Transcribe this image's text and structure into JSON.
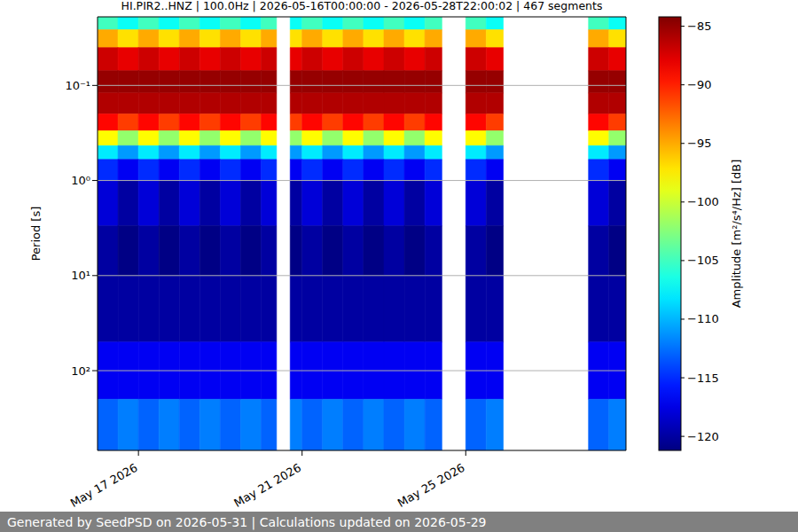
{
  "chart_data": {
    "type": "heatmap",
    "title": "HI.PIR2..HNZ | 100.0Hz | 2026-05-16T00:00:00 - 2026-05-28T22:00:02 | 467 segments",
    "y_label": "Period [s]",
    "x": [
      "2026-05-16T00:00:00",
      "2026-05-16T12:00:00",
      "2026-05-17T00:00:00",
      "2026-05-17T12:00:00",
      "2026-05-18T00:00:00",
      "2026-05-18T12:00:00",
      "2026-05-19T00:00:00",
      "2026-05-19T12:00:00",
      "2026-05-20T00:00:00",
      "2026-05-20T09:00:00",
      "2026-05-20T17:00:00",
      "2026-05-21T00:00:00",
      "2026-05-21T12:00:00",
      "2026-05-22T00:00:00",
      "2026-05-22T12:00:00",
      "2026-05-23T00:00:00",
      "2026-05-23T12:00:00",
      "2026-05-24T00:00:00",
      "2026-05-24T10:00:00",
      "2026-05-25T00:00:00",
      "2026-05-25T12:00:00",
      "2026-05-25T22:00:00",
      "2026-05-28T00:00:00",
      "2026-05-28T12:00:00",
      "2026-05-28T22:00:02"
    ],
    "periods": [
      0.019,
      0.026,
      0.04,
      0.07,
      0.12,
      0.2,
      0.3,
      0.43,
      0.6,
      1,
      3,
      10,
      50,
      200,
      690
    ],
    "xlim": [
      "2026-05-16T00:00:00",
      "2026-05-28T22:00:02"
    ],
    "ylim": [
      0.019,
      690
    ],
    "xticks": [
      {
        "value": "2026-05-17T00:00:00",
        "label": "May 17 2026"
      },
      {
        "value": "2026-05-21T00:00:00",
        "label": "May 21 2026"
      },
      {
        "value": "2026-05-25T00:00:00",
        "label": "May 25 2026"
      }
    ],
    "yticks": [
      {
        "value": 0.1,
        "label": "10⁻¹"
      },
      {
        "value": 1,
        "label": "10⁰"
      },
      {
        "value": 10,
        "label": "10¹"
      },
      {
        "value": 100,
        "label": "10²"
      }
    ],
    "log": "y",
    "grid": true,
    "cells": [
      [
        -105,
        -107,
        -105,
        -107,
        -105,
        -107,
        -105,
        -107,
        -105,
        null,
        -107,
        -105,
        -107,
        -105,
        -107,
        -105,
        -107,
        -105,
        null,
        -105,
        -107,
        null,
        -105,
        -107
      ],
      [
        -95,
        -97,
        -95,
        -97,
        -95,
        -97,
        -95,
        -97,
        -95,
        null,
        -97,
        -95,
        -97,
        -95,
        -97,
        -95,
        -97,
        -95,
        null,
        -95,
        -97,
        null,
        -95,
        -97
      ],
      [
        -87,
        -88,
        -87,
        -88,
        -87,
        -88,
        -87,
        -88,
        -87,
        null,
        -88,
        -87,
        -88,
        -87,
        -88,
        -87,
        -88,
        -87,
        null,
        -87,
        -88,
        null,
        -87,
        -88
      ],
      [
        -85,
        -85,
        -85,
        -85,
        -85,
        -85,
        -85,
        -85,
        -85,
        null,
        -85,
        -85,
        -85,
        -85,
        -85,
        -85,
        -85,
        -85,
        null,
        -85,
        -85,
        null,
        -85,
        -85
      ],
      [
        -86,
        -86,
        -86,
        -86,
        -86,
        -86,
        -86,
        -86,
        -86,
        null,
        -86,
        -86,
        -86,
        -86,
        -86,
        -86,
        -86,
        -86,
        null,
        -86,
        -86,
        null,
        -86,
        -86
      ],
      [
        -89,
        -91,
        -89,
        -91,
        -89,
        -91,
        -89,
        -91,
        -89,
        null,
        -91,
        -89,
        -91,
        -89,
        -91,
        -89,
        -91,
        -89,
        null,
        -89,
        -91,
        null,
        -89,
        -91
      ],
      [
        -98,
        -102,
        -98,
        -102,
        -98,
        -102,
        -98,
        -102,
        -98,
        null,
        -102,
        -98,
        -102,
        -98,
        -102,
        -98,
        -102,
        -98,
        null,
        -98,
        -102,
        null,
        -98,
        -102
      ],
      [
        -108,
        -111,
        -108,
        -111,
        -108,
        -111,
        -108,
        -111,
        -108,
        null,
        -111,
        -108,
        -111,
        -108,
        -111,
        -108,
        -111,
        -108,
        null,
        -108,
        -111,
        null,
        -108,
        -111
      ],
      [
        -115,
        -117,
        -115,
        -117,
        -115,
        -117,
        -115,
        -117,
        -115,
        null,
        -117,
        -115,
        -117,
        -115,
        -117,
        -115,
        -117,
        -115,
        null,
        -115,
        -117,
        null,
        -115,
        -117
      ],
      [
        -118,
        -120,
        -118,
        -120,
        -118,
        -120,
        -118,
        -120,
        -118,
        null,
        -120,
        -118,
        -120,
        -118,
        -120,
        -118,
        -120,
        -118,
        null,
        -118,
        -120,
        null,
        -118,
        -120
      ],
      [
        -120,
        -121,
        -120,
        -121,
        -120,
        -121,
        -120,
        -121,
        -120,
        null,
        -121,
        -120,
        -121,
        -120,
        -121,
        -120,
        -121,
        -120,
        null,
        -120,
        -121,
        null,
        -120,
        -121
      ],
      [
        -120,
        -120,
        -120,
        -120,
        -120,
        -120,
        -120,
        -120,
        -120,
        null,
        -120,
        -120,
        -120,
        -120,
        -120,
        -120,
        -120,
        -120,
        null,
        -120,
        -120,
        null,
        -120,
        -120
      ],
      [
        -117,
        -117,
        -117,
        -117,
        -117,
        -117,
        -117,
        -117,
        -117,
        null,
        -117,
        -117,
        -117,
        -117,
        -117,
        -117,
        -117,
        -117,
        null,
        -117,
        -117,
        null,
        -117,
        -117
      ],
      [
        -113,
        -112,
        -113,
        -112,
        -113,
        -112,
        -113,
        -112,
        -113,
        null,
        -112,
        -113,
        -112,
        -113,
        -112,
        -113,
        -112,
        -113,
        null,
        -113,
        -112,
        null,
        -113,
        -112
      ]
    ],
    "colorbar": {
      "label": "Amplitude [m²/s⁴/Hz] [dB]",
      "range": [
        -121.2,
        -84.2
      ],
      "ticks": [
        {
          "value": -85,
          "label": "−85"
        },
        {
          "value": -90,
          "label": "−90"
        },
        {
          "value": -95,
          "label": "−95"
        },
        {
          "value": -100,
          "label": "−100"
        },
        {
          "value": -105,
          "label": "−105"
        },
        {
          "value": -110,
          "label": "−110"
        },
        {
          "value": -115,
          "label": "−115"
        },
        {
          "value": -120,
          "label": "−120"
        }
      ]
    },
    "footer": "Generated by SeedPSD on 2026-05-31 | Calculations updated on 2026-05-29"
  }
}
